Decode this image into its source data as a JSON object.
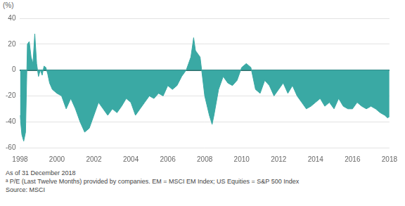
{
  "chart_data": {
    "type": "area",
    "y_label": "(%)",
    "notes": [
      "As of 31 December 2018",
      "ᵃ P/E (Last Twelve Months) provided by companies. EM = MSCI EM Index; US Equities = S&P 500 Index",
      "Source: MSCI"
    ],
    "color": "#3aa9a4",
    "grid": true,
    "xlim": [
      1998,
      2018
    ],
    "xticks": [
      1998,
      2000,
      2002,
      2004,
      2006,
      2008,
      2010,
      2012,
      2014,
      2016,
      2018
    ],
    "ylim": [
      -60,
      40
    ],
    "yticks": [
      -60,
      -40,
      -20,
      0,
      20,
      40
    ],
    "x": [
      1998.0,
      1998.1,
      1998.2,
      1998.3,
      1998.4,
      1998.5,
      1998.6,
      1998.7,
      1998.8,
      1998.9,
      1999.0,
      1999.1,
      1999.2,
      1999.3,
      1999.4,
      1999.5,
      1999.6,
      1999.75,
      2000.0,
      2000.25,
      2000.5,
      2000.75,
      2001.0,
      2001.25,
      2001.5,
      2001.75,
      2002.0,
      2002.25,
      2002.5,
      2002.75,
      2003.0,
      2003.25,
      2003.5,
      2003.75,
      2004.0,
      2004.25,
      2004.5,
      2004.75,
      2005.0,
      2005.25,
      2005.5,
      2005.75,
      2006.0,
      2006.25,
      2006.5,
      2006.75,
      2007.0,
      2007.25,
      2007.4,
      2007.5,
      2007.75,
      2008.0,
      2008.25,
      2008.4,
      2008.5,
      2008.75,
      2009.0,
      2009.25,
      2009.5,
      2009.75,
      2010.0,
      2010.25,
      2010.5,
      2010.75,
      2011.0,
      2011.25,
      2011.5,
      2011.75,
      2012.0,
      2012.25,
      2012.5,
      2012.75,
      2013.0,
      2013.25,
      2013.5,
      2013.75,
      2014.0,
      2014.25,
      2014.5,
      2014.75,
      2015.0,
      2015.25,
      2015.5,
      2015.75,
      2016.0,
      2016.25,
      2016.5,
      2016.75,
      2017.0,
      2017.25,
      2017.5,
      2017.75,
      2017.9,
      2018.0
    ],
    "values": [
      -35,
      -50,
      -55,
      -48,
      20,
      22,
      10,
      5,
      28,
      5,
      -5,
      0,
      -4,
      3,
      2,
      -3,
      -10,
      -15,
      -18,
      -20,
      -30,
      -22,
      -30,
      -40,
      -48,
      -45,
      -35,
      -25,
      -30,
      -35,
      -30,
      -33,
      -28,
      -22,
      -25,
      -35,
      -30,
      -25,
      -20,
      -22,
      -18,
      -20,
      -12,
      -15,
      -12,
      -5,
      0,
      10,
      25,
      15,
      10,
      -20,
      -35,
      -42,
      -35,
      -15,
      -5,
      -10,
      -12,
      -8,
      2,
      5,
      2,
      -15,
      -18,
      -8,
      -12,
      -20,
      -15,
      -10,
      -18,
      -12,
      -20,
      -25,
      -30,
      -28,
      -25,
      -22,
      -28,
      -25,
      -30,
      -22,
      -28,
      -30,
      -30,
      -25,
      -28,
      -30,
      -28,
      -30,
      -33,
      -35,
      -37,
      -36
    ]
  }
}
